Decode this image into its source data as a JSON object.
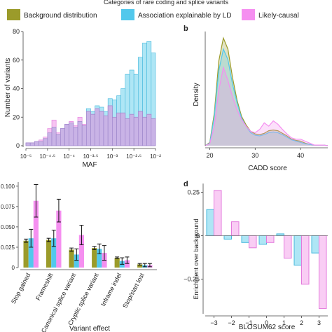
{
  "legend": {
    "title": "Categories of rare coding and splice variants",
    "items": [
      {
        "label": "Background distribution",
        "color": "#9b9b2a"
      },
      {
        "label": "Association explainable by LD",
        "color": "#52c8ec"
      },
      {
        "label": "Likely-causal",
        "color": "#f58ff0"
      }
    ]
  },
  "panel_labels": {
    "b": "b",
    "d": "d"
  },
  "chart_data": [
    {
      "type": "bar",
      "ylabel": "Number of variants",
      "xlabel": "MAF",
      "ylim": [
        0,
        80
      ],
      "yticks": [
        "0",
        "20",
        "40",
        "60",
        "80"
      ],
      "xticks": [
        "10⁻⁵",
        "10⁻⁴·⁵",
        "10⁻⁴",
        "10⁻³·⁵",
        "10⁻³",
        "10⁻²·⁵",
        "10⁻²"
      ],
      "x_log10_range": [
        -5,
        -2
      ],
      "bin_count": 30,
      "series": [
        {
          "name": "Association explainable by LD",
          "values": [
            2,
            2,
            3,
            3,
            5,
            8,
            11,
            8,
            12,
            15,
            16,
            13,
            17,
            14,
            26,
            24,
            28,
            27,
            24,
            33,
            32,
            35,
            40,
            50,
            53,
            50,
            62,
            72,
            73,
            65
          ]
        },
        {
          "name": "Likely-causal",
          "values": [
            2,
            2,
            3,
            4,
            6,
            12,
            18,
            9,
            12,
            15,
            17,
            14,
            20,
            15,
            24,
            22,
            26,
            24,
            20,
            28,
            18,
            22,
            22,
            18,
            22,
            20,
            24,
            20,
            22,
            19
          ]
        },
        {
          "name": "Background distribution",
          "values": [
            2,
            2,
            3,
            3,
            5,
            9,
            13,
            8,
            12,
            15,
            16,
            13,
            17,
            14,
            24,
            22,
            26,
            24,
            21,
            28,
            20,
            23,
            23,
            19,
            22,
            20,
            24,
            20,
            22,
            19
          ]
        }
      ]
    },
    {
      "type": "area",
      "xlabel": "CADD score",
      "ylabel": "Density",
      "xlim": [
        19,
        46
      ],
      "xticks": [
        20,
        30,
        40
      ],
      "x": [
        19,
        20,
        21,
        22,
        23,
        24,
        25,
        26,
        27,
        28,
        29,
        30,
        31,
        32,
        33,
        34,
        35,
        36,
        37,
        38,
        39,
        40,
        41,
        42,
        43,
        44,
        45,
        46
      ],
      "series": [
        {
          "name": "Background distribution",
          "values": [
            0,
            0.005,
            0.05,
            0.13,
            0.165,
            0.148,
            0.105,
            0.07,
            0.045,
            0.032,
            0.022,
            0.018,
            0.017,
            0.019,
            0.023,
            0.024,
            0.023,
            0.019,
            0.015,
            0.01,
            0.008,
            0.007,
            0.004,
            0.002,
            0.001,
            0.001,
            0.001,
            0
          ]
        },
        {
          "name": "Association explainable by LD",
          "values": [
            0,
            0.004,
            0.045,
            0.115,
            0.148,
            0.132,
            0.095,
            0.066,
            0.042,
            0.03,
            0.02,
            0.016,
            0.015,
            0.017,
            0.02,
            0.021,
            0.02,
            0.017,
            0.013,
            0.009,
            0.007,
            0.005,
            0.003,
            0.002,
            0.001,
            0.001,
            0.001,
            0
          ]
        },
        {
          "name": "Likely-causal",
          "values": [
            0,
            0.003,
            0.03,
            0.085,
            0.12,
            0.1,
            0.075,
            0.055,
            0.04,
            0.03,
            0.022,
            0.02,
            0.025,
            0.035,
            0.03,
            0.038,
            0.033,
            0.025,
            0.018,
            0.012,
            0.01,
            0.01,
            0.007,
            0.004,
            0.001,
            0.001,
            0.001,
            0
          ]
        }
      ]
    },
    {
      "type": "bar",
      "xlabel": "Variant effect",
      "ylabel": "",
      "ylim": [
        0,
        0.105
      ],
      "yticks": [
        "0",
        "0.025",
        "0.050",
        "0.075",
        "0.100"
      ],
      "categories": [
        "Stop gained",
        "Frameshift",
        "Canonical splice variant",
        "Cryptic splice variant",
        "Inframe indel",
        "Stop/start lost"
      ],
      "series": [
        {
          "name": "Background distribution",
          "values": [
            0.033,
            0.034,
            0.022,
            0.024,
            0.012,
            0.004
          ],
          "errors": [
            0.002,
            0.002,
            0.002,
            0.002,
            0.001,
            0.001
          ]
        },
        {
          "name": "Association explainable by LD",
          "values": [
            0.036,
            0.036,
            0.016,
            0.023,
            0.008,
            0.003
          ],
          "errors": [
            0.011,
            0.01,
            0.007,
            0.006,
            0.004,
            0.002
          ]
        },
        {
          "name": "Likely-causal",
          "values": [
            0.082,
            0.07,
            0.04,
            0.018,
            0.009,
            0.003
          ],
          "errors": [
            0.02,
            0.014,
            0.012,
            0.009,
            0.004,
            0.002
          ]
        }
      ]
    },
    {
      "type": "bar",
      "xlabel": "BLOSUM62 score",
      "ylabel": "Enrichment over background",
      "ylim": [
        -0.45,
        0.3
      ],
      "yticks": [
        "0.25",
        "0",
        "−0.25"
      ],
      "categories": [
        "−3",
        "−2",
        "−1",
        "0",
        "1",
        "2",
        "3"
      ],
      "series": [
        {
          "name": "Association explainable by LD",
          "values": [
            0.15,
            -0.02,
            -0.04,
            -0.05,
            0.01,
            -0.17,
            -0.1
          ]
        },
        {
          "name": "Likely-causal",
          "values": [
            0.26,
            0.08,
            -0.07,
            -0.04,
            -0.13,
            -0.28,
            -0.42
          ]
        }
      ]
    }
  ]
}
